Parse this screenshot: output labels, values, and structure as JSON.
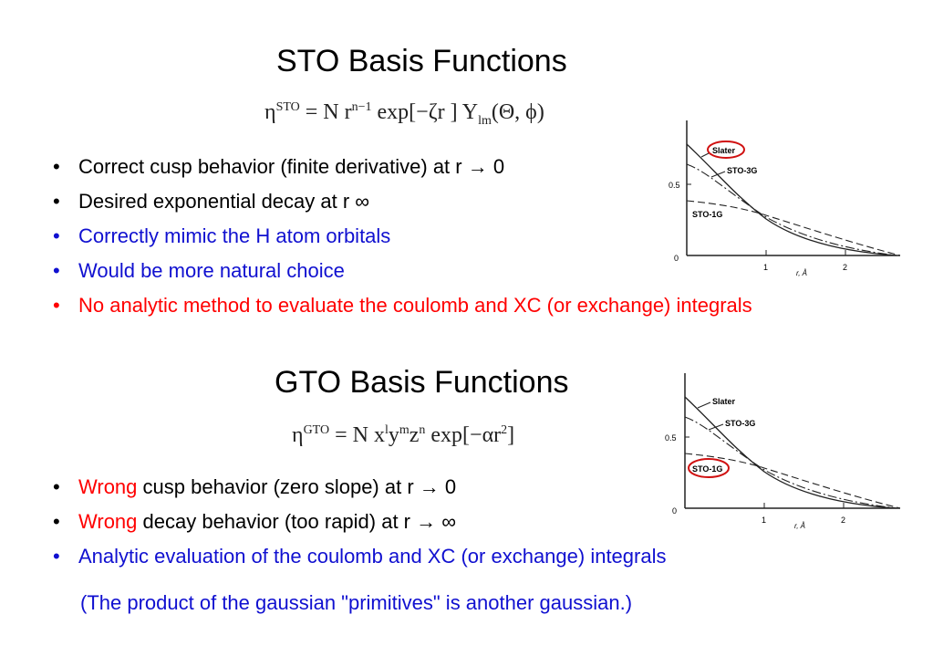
{
  "sto": {
    "title": "STO Basis Functions",
    "formula": {
      "eta": "η",
      "eta_sup": "STO",
      "body_a": " = N r",
      "r_sup": "n−1",
      "body_b": " exp[−ζr ] Y",
      "y_sub": "lm",
      "body_c": "(Θ, ϕ)"
    },
    "bullets": [
      {
        "text": "Correct cusp behavior (finite derivative) at r → 0",
        "color": "#000000"
      },
      {
        "text": "Desired exponential decay at r  ∞",
        "color": "#000000"
      },
      {
        "text": "Correctly mimic the H atom orbitals",
        "color": "#1010d0"
      },
      {
        "text": "Would be more natural choice",
        "color": "#1010d0"
      },
      {
        "text": "No analytic method to evaluate the coulomb and XC (or exchange) integrals",
        "color": "#ff0000"
      }
    ],
    "graph": {
      "labels": {
        "slater": "Slater",
        "sto3g": "STO-3G",
        "sto1g": "STO-1G"
      },
      "y_ticks": [
        "0.5",
        "0"
      ],
      "x_ticks": [
        "1",
        "2"
      ],
      "x_axis_label": "r, Å",
      "highlight": "Slater",
      "highlight_color": "#d01010"
    }
  },
  "gto": {
    "title": "GTO Basis Functions",
    "formula": {
      "eta": "η",
      "eta_sup": "GTO",
      "body_a": " = N x",
      "x_sup": "l",
      "y": "y",
      "y_sup": "m",
      "z": "z",
      "z_sup": "n",
      "body_b": " exp[−αr",
      "r_sup": "2",
      "body_c": "]"
    },
    "bullets": [
      {
        "prefix": "Wrong",
        "text": " cusp behavior (zero slope) at r → 0",
        "prefix_color": "#ff0000",
        "color": "#000000"
      },
      {
        "prefix": "Wrong",
        "text": " decay behavior (too rapid) at r → ∞",
        "prefix_color": "#ff0000",
        "color": "#000000"
      },
      {
        "prefix": "",
        "text": "Analytic evaluation of the coulomb and XC (or exchange) integrals",
        "prefix_color": "#1010d0",
        "color": "#1010d0"
      }
    ],
    "note": "(The product of the gaussian \"primitives\" is another gaussian.)",
    "graph": {
      "labels": {
        "slater": "Slater",
        "sto3g": "STO-3G",
        "sto1g": "STO-1G"
      },
      "y_ticks": [
        "0.5",
        "0"
      ],
      "x_ticks": [
        "1",
        "2"
      ],
      "x_axis_label": "r, Å",
      "highlight": "STO-1G",
      "highlight_color": "#d01010"
    }
  }
}
